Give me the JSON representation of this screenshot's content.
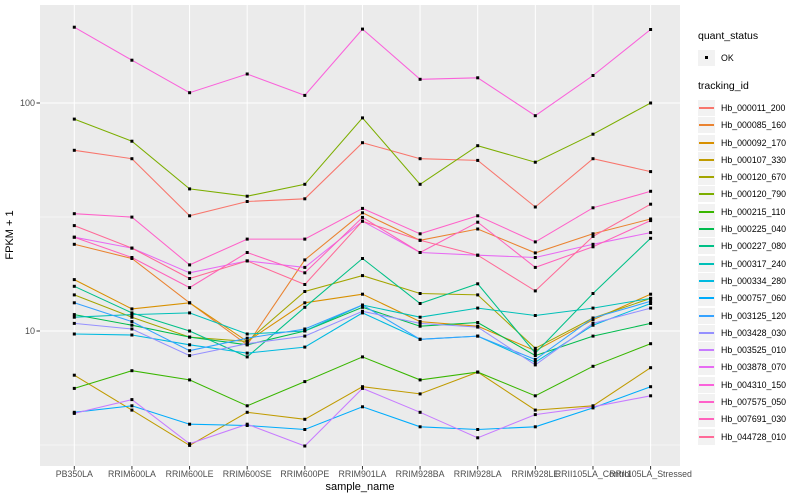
{
  "chart_data": {
    "type": "line",
    "title": "",
    "xlabel": "sample_name",
    "ylabel": "FPKM + 1",
    "y_scale": "log10",
    "y_ticks": [
      10,
      100
    ],
    "y_minor_gridlines": [
      3.162,
      31.62
    ],
    "ylim": [
      2.6,
      270
    ],
    "grid": "on",
    "legend_position": "right",
    "marker": {
      "shape": "square",
      "color": "#000000",
      "legend_label": "OK"
    },
    "categories": [
      "PB350LA",
      "RRIM600LA",
      "RRIM600LE",
      "RRIM600SE",
      "RRIM600PE",
      "RRIM901LA",
      "RRIM928BA",
      "RRIM928LA",
      "RRIM928LE",
      "RRII105LA_Control",
      "RRII105LA_Stressed"
    ],
    "series": [
      {
        "name": "Hb_000011_200",
        "color": "#F8766D",
        "values": [
          62,
          57,
          32,
          37,
          38,
          67,
          57,
          56,
          35,
          57,
          50
        ]
      },
      {
        "name": "Hb_000085_160",
        "color": "#EA8331",
        "values": [
          24,
          20.8,
          13.3,
          8.7,
          20.5,
          33,
          25,
          28,
          22,
          26.7,
          31
        ]
      },
      {
        "name": "Hb_000092_170",
        "color": "#D89000",
        "values": [
          16.8,
          12.5,
          13.3,
          9.0,
          13.3,
          14.5,
          11.0,
          10.5,
          8.2,
          11.2,
          14.5
        ]
      },
      {
        "name": "Hb_000107_330",
        "color": "#C09B00",
        "values": [
          6.4,
          4.5,
          3.15,
          4.4,
          4.1,
          5.7,
          5.3,
          6.6,
          4.5,
          4.7,
          6.9
        ]
      },
      {
        "name": "Hb_000120_670",
        "color": "#A3A500",
        "values": [
          14.4,
          11.5,
          9.4,
          9.0,
          14.9,
          17.5,
          14.6,
          14.4,
          8.4,
          11.4,
          13.9
        ]
      },
      {
        "name": "Hb_000120_790",
        "color": "#7CAE00",
        "values": [
          85,
          68,
          42,
          39,
          44,
          86,
          44,
          65,
          55,
          73,
          100
        ]
      },
      {
        "name": "Hb_000215_110",
        "color": "#39B600",
        "values": [
          5.6,
          6.7,
          6.1,
          4.7,
          6.0,
          7.7,
          6.1,
          6.6,
          5.2,
          7.0,
          8.8
        ]
      },
      {
        "name": "Hb_000225_040",
        "color": "#00BB4E",
        "values": [
          11.8,
          10.6,
          9.4,
          8.7,
          10.0,
          12.7,
          10.5,
          10.9,
          7.8,
          9.5,
          10.8
        ]
      },
      {
        "name": "Hb_000227_080",
        "color": "#00C087",
        "values": [
          15.7,
          12.0,
          10.0,
          7.7,
          12.7,
          20.8,
          13.2,
          16.1,
          8.0,
          14.6,
          25.5
        ]
      },
      {
        "name": "Hb_000317_240",
        "color": "#00C0B8",
        "values": [
          11.5,
          11.8,
          12.0,
          9.7,
          10.0,
          13.0,
          11.5,
          12.6,
          11.7,
          12.6,
          13.9
        ]
      },
      {
        "name": "Hb_000334_280",
        "color": "#00BAE0",
        "values": [
          9.7,
          9.6,
          8.7,
          8.0,
          8.5,
          12.0,
          9.2,
          9.5,
          7.3,
          10.6,
          13.2
        ]
      },
      {
        "name": "Hb_000757_060",
        "color": "#00ACFC",
        "values": [
          4.4,
          4.7,
          3.9,
          3.85,
          3.7,
          4.65,
          3.8,
          3.7,
          3.8,
          4.6,
          5.7
        ]
      },
      {
        "name": "Hb_003125_120",
        "color": "#35A2FF",
        "values": [
          13.3,
          11.0,
          8.2,
          9.3,
          10.2,
          13.0,
          9.2,
          9.5,
          7.5,
          11.4,
          13.5
        ]
      },
      {
        "name": "Hb_003428_030",
        "color": "#9590FF",
        "values": [
          10.8,
          10.2,
          7.8,
          8.8,
          9.5,
          12.2,
          10.8,
          10.4,
          7.1,
          10.8,
          12.6
        ]
      },
      {
        "name": "Hb_003525_010",
        "color": "#C77CFF",
        "values": [
          4.35,
          5.0,
          3.2,
          3.9,
          3.13,
          5.6,
          4.4,
          3.4,
          4.3,
          4.65,
          5.2
        ]
      },
      {
        "name": "Hb_003878_070",
        "color": "#E76BF3",
        "values": [
          25.8,
          23.1,
          18.0,
          20.3,
          19.0,
          30.3,
          22.1,
          21.5,
          21.0,
          24.0,
          27.0
        ]
      },
      {
        "name": "Hb_004310_150",
        "color": "#FA62DB",
        "values": [
          215,
          154,
          111,
          134,
          108,
          211,
          127,
          129,
          88,
          132,
          210
        ]
      },
      {
        "name": "Hb_007575_050",
        "color": "#FF61C9",
        "values": [
          32.7,
          31.6,
          19.5,
          25.3,
          25.3,
          34.5,
          26.7,
          32,
          24.6,
          34.7,
          41
        ]
      },
      {
        "name": "Hb_007691_030",
        "color": "#FF62BC",
        "values": [
          25.8,
          21.0,
          15.5,
          22.1,
          18.0,
          31.5,
          22.1,
          30.0,
          19.0,
          23.4,
          30.5
        ]
      },
      {
        "name": "Hb_044728_010",
        "color": "#FF6A98",
        "values": [
          29.0,
          23.1,
          17.0,
          20.3,
          16.0,
          30.3,
          25.0,
          21.5,
          15.0,
          26.0,
          36.0
        ]
      }
    ]
  },
  "legend": {
    "quant_status": {
      "title": "quant_status",
      "items": [
        {
          "label": "OK"
        }
      ]
    },
    "tracking_id": {
      "title": "tracking_id"
    }
  },
  "theme": {
    "panel_bg": "#EBEBEB",
    "grid_color": "#FFFFFF",
    "key_bg": "#F2F2F2",
    "tick_color": "#333333",
    "tick_label_color": "#4D4D4D",
    "axis_title_color": "#000000",
    "marker_color": "#000000"
  }
}
